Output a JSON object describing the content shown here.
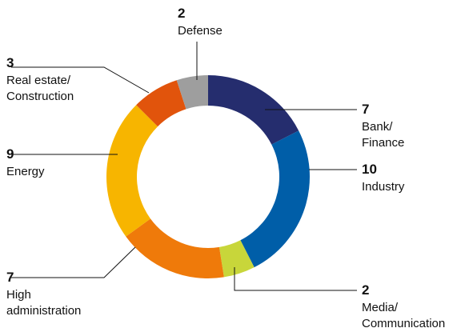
{
  "chart_data": {
    "type": "pie",
    "variant": "donut",
    "title": "",
    "slices": [
      {
        "value": 7,
        "label_lines": [
          "Bank/",
          "Finance"
        ],
        "color": "#252D6E"
      },
      {
        "value": 10,
        "label_lines": [
          "Industry"
        ],
        "color": "#005EA8"
      },
      {
        "value": 2,
        "label_lines": [
          "Media/",
          "Communication"
        ],
        "color": "#C8D63A"
      },
      {
        "value": 7,
        "label_lines": [
          "High",
          "administration"
        ],
        "color": "#EF7A0A"
      },
      {
        "value": 9,
        "label_lines": [
          "Energy"
        ],
        "color": "#F7B500"
      },
      {
        "value": 3,
        "label_lines": [
          "Real estate/",
          "Construction"
        ],
        "color": "#E1540C"
      },
      {
        "value": 2,
        "label_lines": [
          "Defense"
        ],
        "color": "#9E9E9E"
      }
    ]
  }
}
